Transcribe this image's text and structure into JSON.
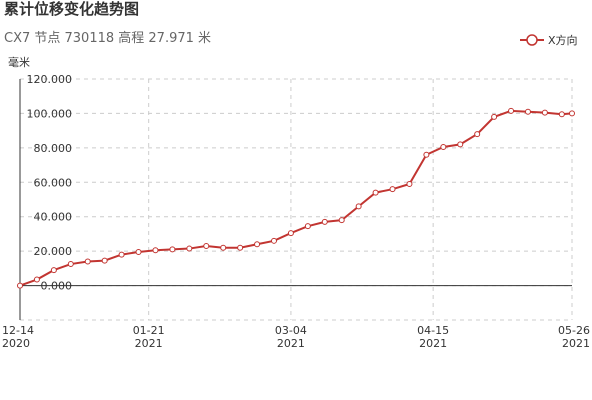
{
  "chart_data": {
    "type": "line",
    "title": "累计位移变化趋势图",
    "subtitle": "CX7 节点 730118 高程 27.971 米",
    "y_label": "毫米",
    "x": [
      "2020-12-14",
      "2020-12-19",
      "2020-12-24",
      "2020-12-29",
      "2021-01-03",
      "2021-01-08",
      "2021-01-13",
      "2021-01-18",
      "2021-01-23",
      "2021-01-28",
      "2021-02-02",
      "2021-02-07",
      "2021-02-12",
      "2021-02-17",
      "2021-02-22",
      "2021-02-27",
      "2021-03-04",
      "2021-03-09",
      "2021-03-14",
      "2021-03-19",
      "2021-03-24",
      "2021-03-29",
      "2021-04-03",
      "2021-04-08",
      "2021-04-13",
      "2021-04-18",
      "2021-04-23",
      "2021-04-28",
      "2021-05-03",
      "2021-05-08",
      "2021-05-13",
      "2021-05-18",
      "2021-05-23",
      "2021-05-26"
    ],
    "series": [
      {
        "name": "X方向",
        "color": "#c23531",
        "values": [
          0,
          3.5,
          9,
          12.5,
          14,
          14.5,
          18,
          19.5,
          20.5,
          21,
          21.5,
          23,
          22,
          22,
          24,
          26,
          30.5,
          34.5,
          37,
          38,
          46,
          54,
          56,
          59,
          76,
          80.5,
          82,
          88,
          98,
          101.5,
          101,
          100.5,
          99.5,
          100
        ]
      }
    ],
    "xlim": [
      "2020-12-14",
      "2021-05-26"
    ],
    "xticks": [
      {
        "value": "2020-12-14",
        "label": [
          "12-14",
          "2020"
        ]
      },
      {
        "value": "2021-01-21",
        "label": [
          "01-21",
          "2021"
        ]
      },
      {
        "value": "2021-03-04",
        "label": [
          "03-04",
          "2021"
        ]
      },
      {
        "value": "2021-04-15",
        "label": [
          "04-15",
          "2021"
        ]
      },
      {
        "value": "2021-05-26",
        "label": [
          "05-26",
          "2021"
        ]
      }
    ],
    "ylim": [
      -20,
      120
    ],
    "yticks": [
      {
        "value": 0,
        "label": "0.000"
      },
      {
        "value": 20,
        "label": "20.000"
      },
      {
        "value": 40,
        "label": "40.000"
      },
      {
        "value": 60,
        "label": "60.000"
      },
      {
        "value": 80,
        "label": "80.000"
      },
      {
        "value": 100,
        "label": "100.000"
      },
      {
        "value": 120,
        "label": "120.000"
      }
    ],
    "grid": true,
    "legend": "top-right"
  }
}
